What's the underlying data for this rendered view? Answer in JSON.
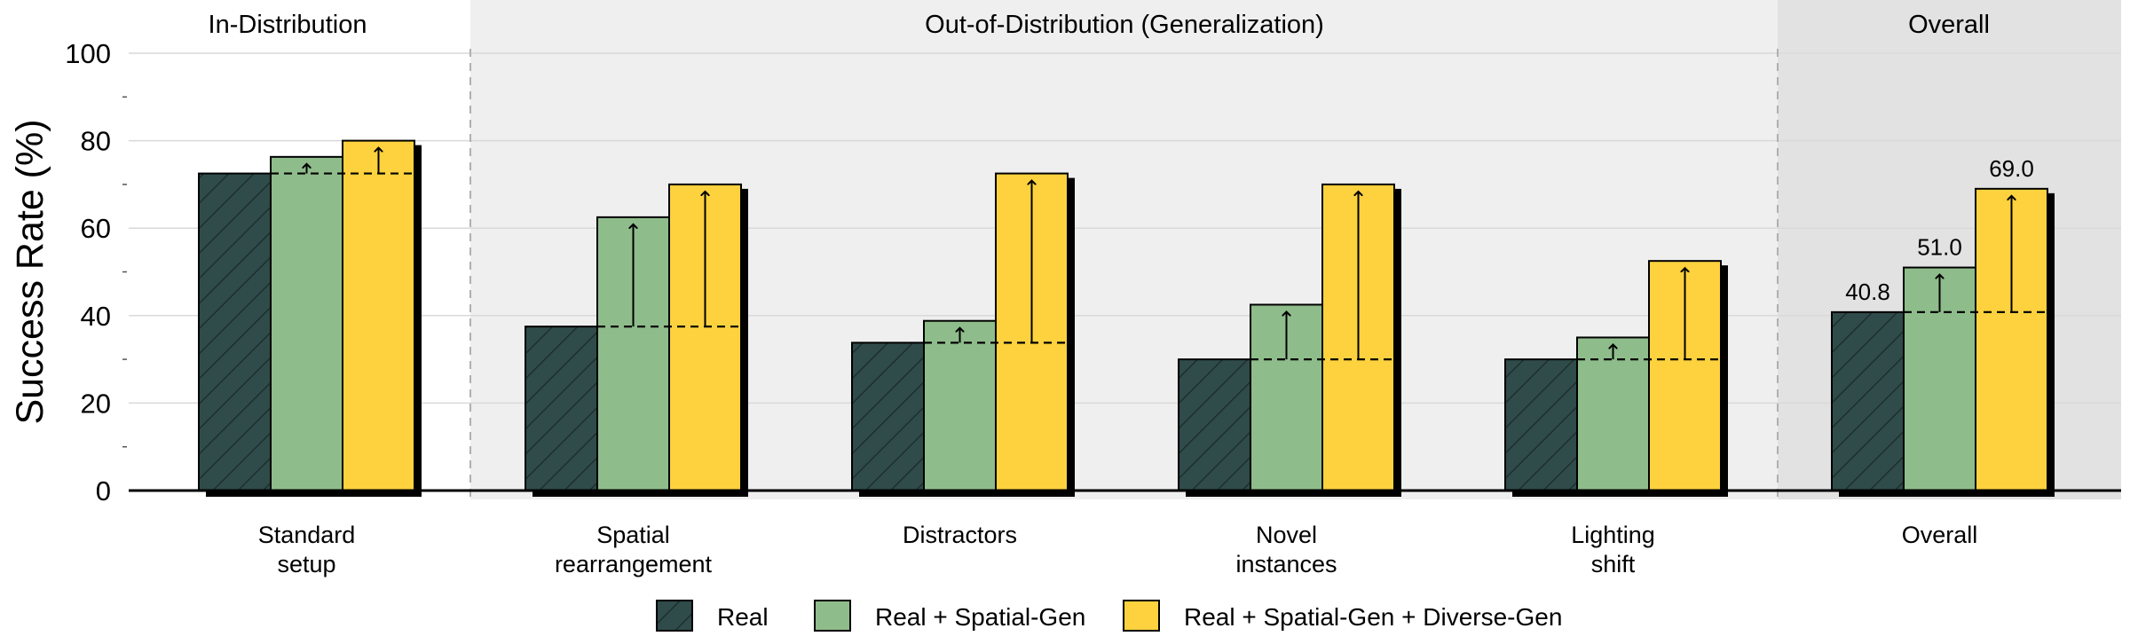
{
  "chart_data": {
    "type": "bar",
    "ylabel": "Success Rate (%)",
    "ylim": [
      0,
      100
    ],
    "yticks": [
      0,
      20,
      40,
      60,
      80,
      100
    ],
    "grid": true,
    "legend_position": "bottom",
    "section_titles": [
      "In-Distribution",
      "Out-of-Distribution (Generalization)",
      "Overall"
    ],
    "categories": [
      "Standard\nsetup",
      "Spatial\nrearrangement",
      "Distractors",
      "Novel\ninstances",
      "Lighting\nshift",
      "Overall"
    ],
    "category_section": [
      0,
      1,
      1,
      1,
      1,
      2
    ],
    "series": [
      {
        "name": "Real",
        "color": "#2f4b4a",
        "hatch": true,
        "values": [
          72.5,
          37.5,
          33.8,
          30.0,
          30.0,
          40.8
        ]
      },
      {
        "name": "Real + Spatial-Gen",
        "color": "#8fbc8b",
        "hatch": false,
        "values": [
          76.3,
          62.5,
          38.8,
          42.5,
          35.0,
          51.0
        ]
      },
      {
        "name": "Real + Spatial-Gen + Diverse-Gen",
        "color": "#fdd23e",
        "hatch": false,
        "values": [
          80.0,
          70.0,
          72.5,
          70.0,
          52.5,
          69.0
        ]
      }
    ],
    "data_labels_category": 5,
    "data_labels": [
      "40.8",
      "51.0",
      "69.0"
    ],
    "colors": {
      "ood_background": "#efefef",
      "overall_background": "#e2e2e2",
      "divider": "#b0b0b0"
    }
  }
}
